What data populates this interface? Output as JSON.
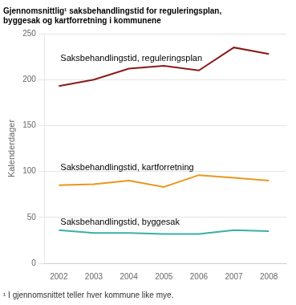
{
  "chart_data": {
    "type": "line",
    "title": [
      "Gjennomsnittlig¹ saksbehandlingstid for reguleringsplan,",
      "byggesak og kartforretning i kommunene"
    ],
    "y_label": "Kalenderdager",
    "footnote": "¹ I gjennomsnittet teller hver kommune like mye.",
    "x": [
      2002,
      2003,
      2004,
      2005,
      2006,
      2007,
      2008
    ],
    "series": [
      {
        "name": "Saksbehandlingstid, reguleringsplan",
        "color": "#8B1A1A",
        "values": [
          193,
          200,
          212,
          215,
          210,
          235,
          228
        ]
      },
      {
        "name": "Saksbehandlingstid, kartforretning",
        "color": "#E8971E",
        "values": [
          85,
          86,
          90,
          83,
          96,
          93,
          90
        ]
      },
      {
        "name": "Saksbehandlingstid, byggesak",
        "color": "#3AAFA9",
        "values": [
          36,
          33,
          33,
          32,
          32,
          36,
          35
        ]
      }
    ],
    "xlim": [
      2001.6,
      2008.5
    ],
    "xticks": [
      2002,
      2003,
      2004,
      2005,
      2006,
      2007,
      2008
    ],
    "ylim": [
      0,
      250
    ],
    "yticks": [
      0,
      50,
      100,
      150,
      200,
      250
    ],
    "grid": "y"
  }
}
